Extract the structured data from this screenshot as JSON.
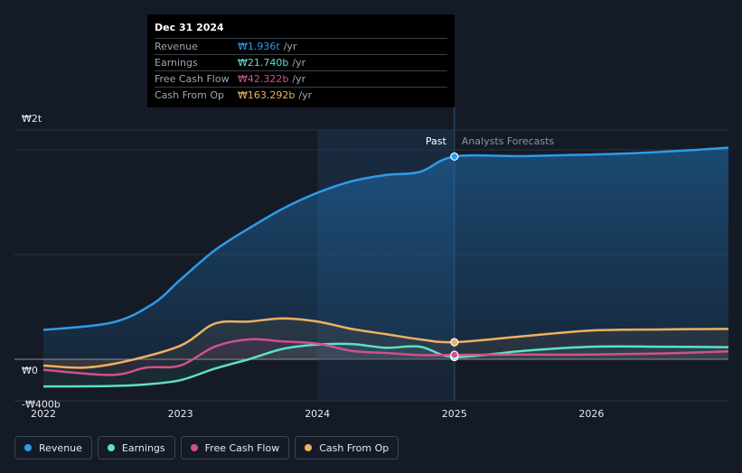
{
  "tooltip": {
    "date": "Dec 31 2024",
    "rows": [
      {
        "label": "Revenue",
        "value": "₩1.936t",
        "unit": "/yr",
        "color": "#2f9ae8"
      },
      {
        "label": "Earnings",
        "value": "₩21.740b",
        "unit": "/yr",
        "color": "#5ee0c9"
      },
      {
        "label": "Free Cash Flow",
        "value": "₩42.322b",
        "unit": "/yr",
        "color": "#d2508c"
      },
      {
        "label": "Cash From Op",
        "value": "₩163.292b",
        "unit": "/yr",
        "color": "#f0b060"
      }
    ]
  },
  "legend": [
    {
      "label": "Revenue",
      "color": "#2f9ae8"
    },
    {
      "label": "Earnings",
      "color": "#5ee0c9"
    },
    {
      "label": "Free Cash Flow",
      "color": "#d2508c"
    },
    {
      "label": "Cash From Op",
      "color": "#f0b060"
    }
  ],
  "chart_data": {
    "type": "line",
    "title": "",
    "y_tick_labels": [
      "₩2t",
      "₩0",
      "-₩400b"
    ],
    "y_ticks": [
      2000,
      0,
      -400
    ],
    "ylim": [
      -400,
      2200
    ],
    "xlim": [
      2022,
      2027
    ],
    "x_ticks": [
      2022,
      2023,
      2024,
      2025,
      2026
    ],
    "x_tick_labels": [
      "2022",
      "2023",
      "2024",
      "2025",
      "2026"
    ],
    "past_label": "Past",
    "forecast_label": "Analysts Forecasts",
    "forecast_start": 2025,
    "series": [
      {
        "name": "Revenue",
        "color": "#2f9ae8",
        "x": [
          2022,
          2022.5,
          2022.8,
          2023,
          2023.25,
          2023.5,
          2023.75,
          2024,
          2024.25,
          2024.5,
          2024.75,
          2025,
          2025.5,
          2026,
          2026.5,
          2027
        ],
        "values": [
          280,
          350,
          530,
          760,
          1040,
          1250,
          1440,
          1590,
          1700,
          1760,
          1790,
          1936,
          1940,
          1955,
          1980,
          2020
        ]
      },
      {
        "name": "Earnings",
        "color": "#5ee0c9",
        "x": [
          2022,
          2022.5,
          2022.75,
          2023,
          2023.25,
          2023.5,
          2023.75,
          2024,
          2024.25,
          2024.5,
          2024.75,
          2025,
          2025.5,
          2026,
          2026.5,
          2027
        ],
        "values": [
          -260,
          -255,
          -240,
          -200,
          -90,
          0,
          100,
          140,
          145,
          110,
          120,
          22,
          80,
          120,
          120,
          115
        ]
      },
      {
        "name": "Free Cash Flow",
        "color": "#d2508c",
        "x": [
          2022,
          2022.5,
          2022.75,
          2023,
          2023.25,
          2023.5,
          2023.75,
          2024,
          2024.25,
          2024.5,
          2024.75,
          2025,
          2025.5,
          2026,
          2026.5,
          2027
        ],
        "values": [
          -100,
          -150,
          -80,
          -60,
          120,
          190,
          170,
          150,
          80,
          60,
          40,
          42,
          45,
          45,
          55,
          75
        ]
      },
      {
        "name": "Cash From Op",
        "color": "#f0b060",
        "x": [
          2022,
          2022.3,
          2022.6,
          2023,
          2023.25,
          2023.5,
          2023.75,
          2024,
          2024.25,
          2024.5,
          2024.75,
          2025,
          2025.5,
          2026,
          2026.5,
          2027
        ],
        "values": [
          -60,
          -80,
          -20,
          130,
          340,
          360,
          390,
          360,
          290,
          240,
          190,
          163,
          220,
          275,
          285,
          290
        ]
      }
    ]
  }
}
